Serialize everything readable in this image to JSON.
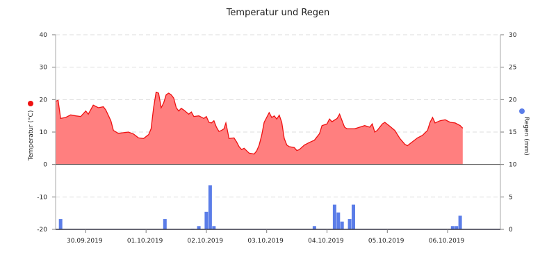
{
  "chart_data": {
    "type": "area",
    "title": "Temperatur und Regen",
    "x_range": [
      "2019-09-29T12:00",
      "2019-10-06T21:00"
    ],
    "x_ticks": [
      {
        "date": "2019-09-30",
        "label": "30.09.2019"
      },
      {
        "date": "2019-10-01",
        "label": "01.10.2019"
      },
      {
        "date": "2019-10-02",
        "label": "02.10.2019"
      },
      {
        "date": "2019-10-03",
        "label": "03.10.2019"
      },
      {
        "date": "2019-10-04",
        "label": "04.10.2019"
      },
      {
        "date": "2019-10-05",
        "label": "05.10.2019"
      },
      {
        "date": "2019-10-06",
        "label": "06.10.2019"
      }
    ],
    "y_left": {
      "label": "Temperatur (°C)",
      "range": [
        -20,
        40
      ],
      "ticks": [
        40,
        30,
        20,
        10,
        0,
        -10,
        -20
      ]
    },
    "y_right": {
      "label": "Regen (mm)",
      "range": [
        0,
        30
      ],
      "ticks": [
        30,
        25,
        20,
        15,
        10,
        5,
        0
      ]
    },
    "grid": true,
    "series": [
      {
        "name": "Temperatur",
        "axis": "left",
        "type": "area",
        "line_color": "#ee1111",
        "fill_color": "#ff7f7f",
        "points": [
          [
            "2019-09-29T12:00",
            19.5
          ],
          [
            "2019-09-29T13:00",
            19.8
          ],
          [
            "2019-09-29T14:00",
            14.2
          ],
          [
            "2019-09-29T16:00",
            14.5
          ],
          [
            "2019-09-29T18:00",
            15.3
          ],
          [
            "2019-09-29T20:00",
            15.0
          ],
          [
            "2019-09-29T22:00",
            14.8
          ],
          [
            "2019-09-30T00:00",
            16.5
          ],
          [
            "2019-09-30T01:00",
            15.5
          ],
          [
            "2019-09-30T03:00",
            18.3
          ],
          [
            "2019-09-30T05:00",
            17.5
          ],
          [
            "2019-09-30T07:00",
            17.8
          ],
          [
            "2019-09-30T08:00",
            16.8
          ],
          [
            "2019-09-30T10:00",
            13.5
          ],
          [
            "2019-09-30T11:00",
            10.5
          ],
          [
            "2019-09-30T13:00",
            9.6
          ],
          [
            "2019-09-30T15:00",
            9.8
          ],
          [
            "2019-09-30T17:00",
            10.0
          ],
          [
            "2019-09-30T19:00",
            9.4
          ],
          [
            "2019-09-30T21:00",
            8.2
          ],
          [
            "2019-09-30T23:00",
            8.0
          ],
          [
            "2019-10-01T01:00",
            9.2
          ],
          [
            "2019-10-01T02:00",
            11.0
          ],
          [
            "2019-10-01T03:00",
            17.5
          ],
          [
            "2019-10-01T04:00",
            22.3
          ],
          [
            "2019-10-01T05:00",
            22.0
          ],
          [
            "2019-10-01T06:00",
            17.5
          ],
          [
            "2019-10-01T07:00",
            19.0
          ],
          [
            "2019-10-01T08:00",
            21.5
          ],
          [
            "2019-10-01T09:00",
            22.0
          ],
          [
            "2019-10-01T10:00",
            21.5
          ],
          [
            "2019-10-01T11:00",
            20.5
          ],
          [
            "2019-10-01T12:00",
            17.5
          ],
          [
            "2019-10-01T13:00",
            16.5
          ],
          [
            "2019-10-01T14:00",
            17.3
          ],
          [
            "2019-10-01T15:00",
            16.8
          ],
          [
            "2019-10-01T17:00",
            15.5
          ],
          [
            "2019-10-01T18:00",
            16.2
          ],
          [
            "2019-10-01T19:00",
            14.8
          ],
          [
            "2019-10-01T21:00",
            15.0
          ],
          [
            "2019-10-01T23:00",
            14.2
          ],
          [
            "2019-10-02T00:00",
            14.8
          ],
          [
            "2019-10-02T01:00",
            13.0
          ],
          [
            "2019-10-02T02:00",
            12.8
          ],
          [
            "2019-10-02T03:00",
            13.5
          ],
          [
            "2019-10-02T04:00",
            11.5
          ],
          [
            "2019-10-02T05:00",
            10.2
          ],
          [
            "2019-10-02T06:00",
            10.5
          ],
          [
            "2019-10-02T07:00",
            11.0
          ],
          [
            "2019-10-02T07:45",
            12.8
          ],
          [
            "2019-10-02T08:30",
            10.0
          ],
          [
            "2019-10-02T09:00",
            8.0
          ],
          [
            "2019-10-02T11:00",
            8.2
          ],
          [
            "2019-10-02T12:00",
            7.0
          ],
          [
            "2019-10-02T13:00",
            5.5
          ],
          [
            "2019-10-02T14:00",
            4.6
          ],
          [
            "2019-10-02T15:00",
            5.0
          ],
          [
            "2019-10-02T17:00",
            3.5
          ],
          [
            "2019-10-02T19:00",
            3.2
          ],
          [
            "2019-10-02T20:00",
            4.2
          ],
          [
            "2019-10-02T21:00",
            6.0
          ],
          [
            "2019-10-02T22:00",
            9.0
          ],
          [
            "2019-10-02T23:00",
            13.0
          ],
          [
            "2019-10-03T00:00",
            14.5
          ],
          [
            "2019-10-03T01:00",
            16.0
          ],
          [
            "2019-10-03T02:00",
            14.5
          ],
          [
            "2019-10-03T03:00",
            15.0
          ],
          [
            "2019-10-03T04:00",
            14.0
          ],
          [
            "2019-10-03T05:00",
            15.2
          ],
          [
            "2019-10-03T06:00",
            13.0
          ],
          [
            "2019-10-03T07:00",
            8.0
          ],
          [
            "2019-10-03T08:00",
            6.0
          ],
          [
            "2019-10-03T09:00",
            5.5
          ],
          [
            "2019-10-03T11:00",
            5.2
          ],
          [
            "2019-10-03T12:00",
            4.3
          ],
          [
            "2019-10-03T13:00",
            4.6
          ],
          [
            "2019-10-03T15:00",
            6.0
          ],
          [
            "2019-10-03T17:00",
            6.8
          ],
          [
            "2019-10-03T19:00",
            7.5
          ],
          [
            "2019-10-03T21:00",
            9.5
          ],
          [
            "2019-10-03T22:00",
            12.0
          ],
          [
            "2019-10-04T00:00",
            12.5
          ],
          [
            "2019-10-04T01:00",
            14.0
          ],
          [
            "2019-10-04T02:00",
            13.2
          ],
          [
            "2019-10-04T04:00",
            14.2
          ],
          [
            "2019-10-04T05:00",
            15.5
          ],
          [
            "2019-10-04T06:00",
            13.5
          ],
          [
            "2019-10-04T07:00",
            11.5
          ],
          [
            "2019-10-04T08:00",
            11.0
          ],
          [
            "2019-10-04T11:00",
            11.0
          ],
          [
            "2019-10-04T13:00",
            11.5
          ],
          [
            "2019-10-04T15:00",
            12.0
          ],
          [
            "2019-10-04T17:00",
            11.5
          ],
          [
            "2019-10-04T18:00",
            12.5
          ],
          [
            "2019-10-04T19:00",
            10.0
          ],
          [
            "2019-10-04T20:00",
            10.5
          ],
          [
            "2019-10-04T22:00",
            12.5
          ],
          [
            "2019-10-04T23:00",
            13.0
          ],
          [
            "2019-10-05T01:00",
            11.8
          ],
          [
            "2019-10-05T03:00",
            10.5
          ],
          [
            "2019-10-05T05:00",
            8.0
          ],
          [
            "2019-10-05T07:00",
            6.2
          ],
          [
            "2019-10-05T08:00",
            5.8
          ],
          [
            "2019-10-05T10:00",
            7.0
          ],
          [
            "2019-10-05T12:00",
            8.2
          ],
          [
            "2019-10-05T14:00",
            9.0
          ],
          [
            "2019-10-05T16:00",
            10.5
          ],
          [
            "2019-10-05T17:00",
            13.0
          ],
          [
            "2019-10-05T18:00",
            14.5
          ],
          [
            "2019-10-05T19:00",
            12.8
          ],
          [
            "2019-10-05T21:00",
            13.5
          ],
          [
            "2019-10-05T23:00",
            13.8
          ],
          [
            "2019-10-06T01:00",
            13.0
          ],
          [
            "2019-10-06T03:00",
            12.8
          ],
          [
            "2019-10-06T05:00",
            12.0
          ],
          [
            "2019-10-06T06:00",
            11.2
          ]
        ]
      },
      {
        "name": "Regen",
        "axis": "right",
        "type": "bar",
        "color": "#5b7de8",
        "points": [
          [
            "2019-09-29T14:00",
            1.6
          ],
          [
            "2019-10-01T07:30",
            1.6
          ],
          [
            "2019-10-01T18:30",
            0.1
          ],
          [
            "2019-10-01T21:00",
            0.5
          ],
          [
            "2019-10-02T00:00",
            2.7
          ],
          [
            "2019-10-02T01:30",
            6.8
          ],
          [
            "2019-10-02T03:00",
            0.5
          ],
          [
            "2019-10-03T19:00",
            0.5
          ],
          [
            "2019-10-04T03:00",
            3.8
          ],
          [
            "2019-10-04T04:30",
            2.6
          ],
          [
            "2019-10-04T06:00",
            1.2
          ],
          [
            "2019-10-04T09:00",
            1.6
          ],
          [
            "2019-10-04T10:30",
            3.8
          ],
          [
            "2019-10-06T02:00",
            0.5
          ],
          [
            "2019-10-06T03:30",
            0.5
          ],
          [
            "2019-10-06T05:00",
            2.1
          ]
        ]
      }
    ],
    "legend": "axis-markers"
  }
}
